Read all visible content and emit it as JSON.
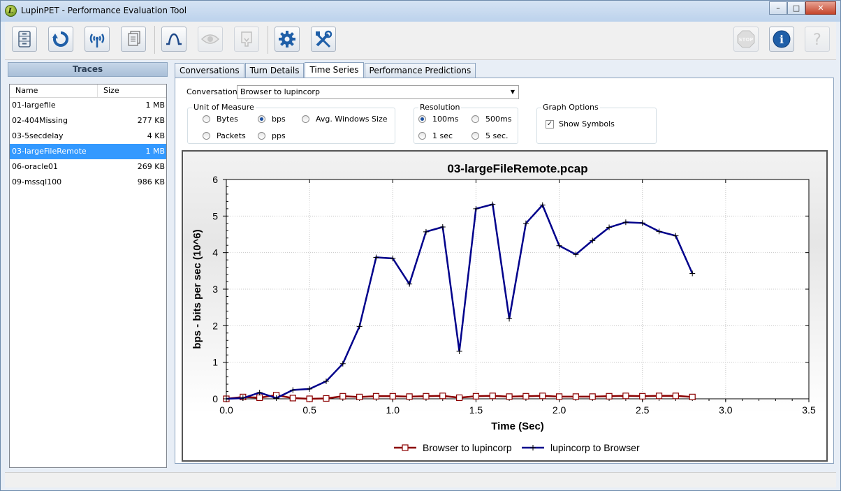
{
  "window": {
    "title": "LupinPET - Performance Evaluation Tool",
    "logo_letter": "L"
  },
  "toolbar": {
    "buttons": [
      {
        "icon": "database-icon",
        "enabled": true
      },
      {
        "icon": "refresh-icon",
        "enabled": true
      },
      {
        "icon": "antenna-icon",
        "enabled": true
      },
      {
        "icon": "pages-icon",
        "enabled": true
      },
      {
        "icon": "waveform-icon",
        "enabled": true
      },
      {
        "icon": "eye-icon",
        "enabled": false
      },
      {
        "icon": "export-icon",
        "enabled": false
      },
      {
        "icon": "gear-icon",
        "enabled": true
      },
      {
        "icon": "tools-icon",
        "enabled": true
      },
      {
        "icon": "stop-icon",
        "enabled": false,
        "label": "STOP"
      },
      {
        "icon": "info-icon",
        "enabled": true,
        "label": "i"
      },
      {
        "icon": "help-icon",
        "enabled": false,
        "label": "?"
      }
    ]
  },
  "sidebar": {
    "header": "Traces",
    "columns": {
      "name": "Name",
      "size": "Size"
    },
    "traces": [
      {
        "name": "01-largefile",
        "size": "1 MB",
        "selected": false
      },
      {
        "name": "02-404Missing",
        "size": "277 KB",
        "selected": false
      },
      {
        "name": "03-5secdelay",
        "size": "4 KB",
        "selected": false
      },
      {
        "name": "03-largeFileRemote",
        "size": "1 MB",
        "selected": true
      },
      {
        "name": "06-oracle01",
        "size": "269 KB",
        "selected": false
      },
      {
        "name": "09-mssql100",
        "size": "986 KB",
        "selected": false
      }
    ]
  },
  "tabs": [
    "Conversations",
    "Turn Details",
    "Time Series",
    "Performance Predictions"
  ],
  "active_tab": "Time Series",
  "controls": {
    "conversation_label": "Conversation",
    "conversation_value": "Browser to lupincorp",
    "unit_group": "Unit of Measure",
    "units": {
      "bytes": "Bytes",
      "bps": "bps",
      "avg": "Avg. Windows Size",
      "packets": "Packets",
      "pps": "pps"
    },
    "unit_selected": "bps",
    "resolution_group": "Resolution",
    "resolutions": {
      "r100": "100ms",
      "r500": "500ms",
      "r1": "1 sec",
      "r5": "5 sec."
    },
    "resolution_selected": "100ms",
    "graph_group": "Graph Options",
    "show_symbols_label": "Show Symbols",
    "show_symbols": true
  },
  "chart_data": {
    "type": "line",
    "title": "03-largeFileRemote.pcap",
    "xlabel": "Time (Sec)",
    "ylabel": "bps - bits per sec (10^6)",
    "xlim": [
      0,
      3.5
    ],
    "ylim": [
      0,
      6
    ],
    "xticks": [
      "0.0",
      "0.5",
      "1.0",
      "1.5",
      "2.0",
      "2.5",
      "3.0",
      "3.5"
    ],
    "yticks": [
      "0",
      "1",
      "2",
      "3",
      "4",
      "5",
      "6"
    ],
    "grid": true,
    "legend_position": "bottom",
    "series": [
      {
        "name": "Browser to lupincorp",
        "color": "#8b0000",
        "marker": "square",
        "x": [
          0.0,
          0.1,
          0.2,
          0.3,
          0.4,
          0.5,
          0.6,
          0.7,
          0.8,
          0.9,
          1.0,
          1.1,
          1.2,
          1.3,
          1.4,
          1.5,
          1.6,
          1.7,
          1.8,
          1.9,
          2.0,
          2.1,
          2.2,
          2.3,
          2.4,
          2.5,
          2.6,
          2.7,
          2.8
        ],
        "y": [
          0.0,
          0.05,
          0.03,
          0.1,
          0.02,
          0.0,
          0.01,
          0.07,
          0.05,
          0.07,
          0.07,
          0.06,
          0.07,
          0.08,
          0.03,
          0.07,
          0.08,
          0.06,
          0.07,
          0.08,
          0.06,
          0.06,
          0.06,
          0.07,
          0.08,
          0.07,
          0.08,
          0.08,
          0.05
        ]
      },
      {
        "name": "lupincorp to Browser",
        "color": "#00008b",
        "marker": "cross",
        "x": [
          0.0,
          0.1,
          0.2,
          0.3,
          0.4,
          0.5,
          0.6,
          0.7,
          0.8,
          0.9,
          1.0,
          1.1,
          1.2,
          1.3,
          1.4,
          1.5,
          1.6,
          1.7,
          1.8,
          1.9,
          2.0,
          2.1,
          2.2,
          2.3,
          2.4,
          2.5,
          2.6,
          2.7,
          2.8
        ],
        "y": [
          0.0,
          0.02,
          0.17,
          0.02,
          0.24,
          0.27,
          0.48,
          0.96,
          1.98,
          3.87,
          3.84,
          3.14,
          4.57,
          4.7,
          1.3,
          5.2,
          5.32,
          2.19,
          4.8,
          5.3,
          4.19,
          3.95,
          4.33,
          4.69,
          4.83,
          4.81,
          4.58,
          4.46,
          3.43
        ]
      }
    ]
  },
  "colors": {
    "selection": "#3399ff",
    "series_browser": "#8b0000",
    "series_lupincorp": "#00008b"
  }
}
